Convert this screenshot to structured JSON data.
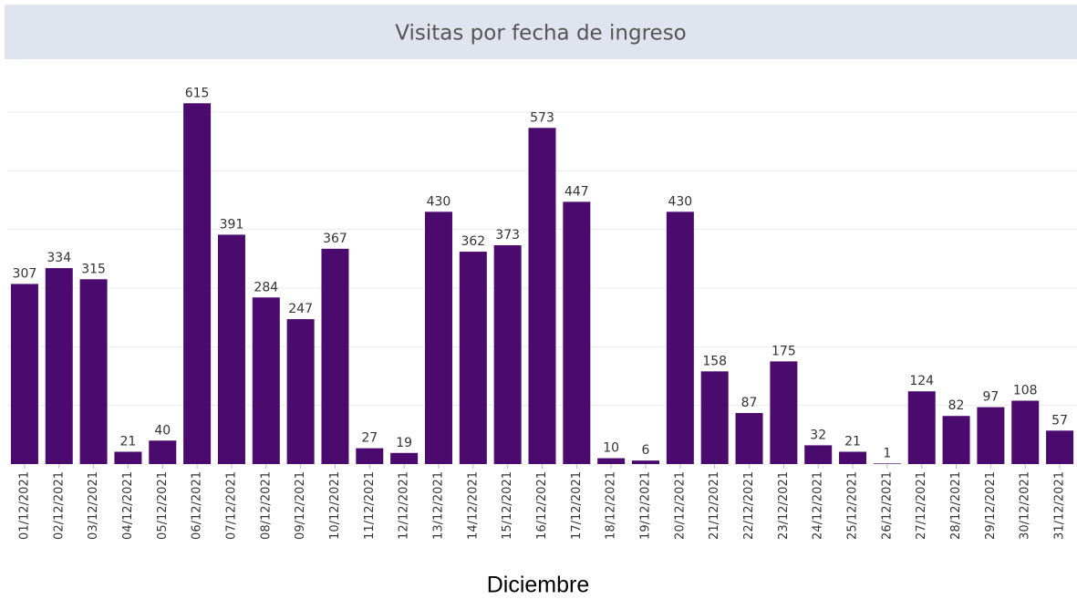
{
  "chart_data": {
    "type": "bar",
    "title": "Visitas por fecha de ingreso",
    "x_label": "Diciembre",
    "categories": [
      "01/12/2021",
      "02/12/2021",
      "03/12/2021",
      "04/12/2021",
      "05/12/2021",
      "06/12/2021",
      "07/12/2021",
      "08/12/2021",
      "09/12/2021",
      "10/12/2021",
      "11/12/2021",
      "12/12/2021",
      "13/12/2021",
      "14/12/2021",
      "15/12/2021",
      "16/12/2021",
      "17/12/2021",
      "18/12/2021",
      "19/12/2021",
      "20/12/2021",
      "21/12/2021",
      "22/12/2021",
      "23/12/2021",
      "24/12/2021",
      "25/12/2021",
      "26/12/2021",
      "27/12/2021",
      "28/12/2021",
      "29/12/2021",
      "30/12/2021",
      "31/12/2021"
    ],
    "values": [
      307,
      334,
      315,
      21,
      40,
      615,
      391,
      284,
      247,
      367,
      27,
      19,
      430,
      362,
      373,
      573,
      447,
      10,
      6,
      430,
      158,
      87,
      175,
      32,
      21,
      1,
      124,
      82,
      97,
      108,
      57
    ],
    "color": "#4b0a6e",
    "ylim": [
      0,
      690
    ],
    "yticks": [
      0,
      100,
      200,
      300,
      400,
      500,
      600
    ],
    "grid": true
  }
}
